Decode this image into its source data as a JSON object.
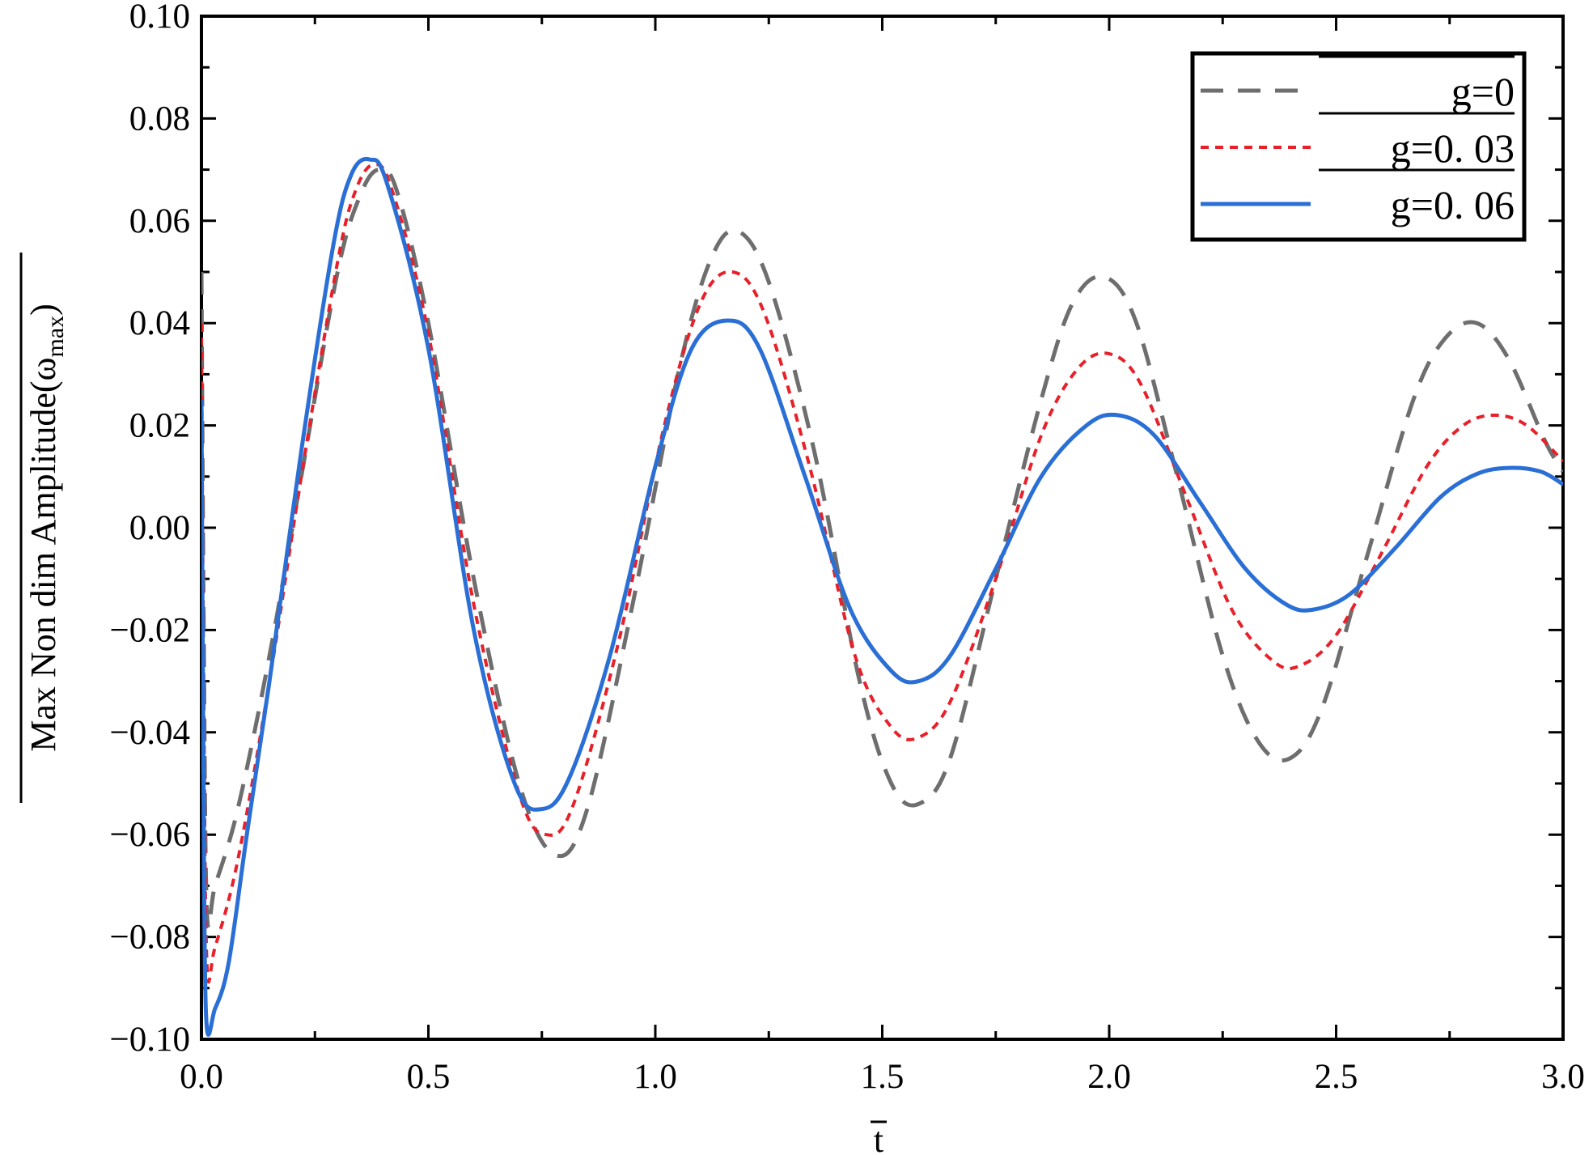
{
  "chart_data": {
    "type": "line",
    "title": "",
    "xlabel": "t",
    "ylabel": "Max Non dim Amplitude(ω",
    "ylabel_sub": "max",
    "ylabel_close": ")",
    "xlim": [
      0,
      3.0
    ],
    "ylim": [
      -0.1,
      0.1
    ],
    "x_ticks": [
      0.0,
      0.5,
      1.0,
      1.5,
      2.0,
      2.5,
      3.0
    ],
    "x_tick_labels": [
      "0.0",
      "0.5",
      "1.0",
      "1.5",
      "2.0",
      "2.5",
      "3.0"
    ],
    "y_ticks": [
      -0.1,
      -0.08,
      -0.06,
      -0.04,
      -0.02,
      0.0,
      0.02,
      0.04,
      0.06,
      0.08,
      0.1
    ],
    "y_tick_labels": [
      "−0.10",
      "−0.08",
      "−0.06",
      "−0.04",
      "−0.02",
      "0.00",
      "0.02",
      "0.04",
      "0.06",
      "0.08",
      "0.10"
    ],
    "grid": false,
    "legend_position": "top-right",
    "series": [
      {
        "name": "g=0",
        "color": "#6e6e6e",
        "dash": "dashed",
        "points": [
          [
            0.0,
            0.05
          ],
          [
            0.005,
            -0.02
          ],
          [
            0.012,
            -0.075
          ],
          [
            0.03,
            -0.07
          ],
          [
            0.08,
            -0.055
          ],
          [
            0.15,
            -0.025
          ],
          [
            0.22,
            0.01
          ],
          [
            0.3,
            0.05
          ],
          [
            0.35,
            0.065
          ],
          [
            0.39,
            0.07
          ],
          [
            0.43,
            0.066
          ],
          [
            0.5,
            0.04
          ],
          [
            0.6,
            -0.01
          ],
          [
            0.7,
            -0.05
          ],
          [
            0.78,
            -0.064
          ],
          [
            0.85,
            -0.055
          ],
          [
            0.95,
            -0.015
          ],
          [
            1.05,
            0.03
          ],
          [
            1.12,
            0.052
          ],
          [
            1.18,
            0.058
          ],
          [
            1.25,
            0.048
          ],
          [
            1.35,
            0.015
          ],
          [
            1.45,
            -0.03
          ],
          [
            1.52,
            -0.05
          ],
          [
            1.58,
            -0.054
          ],
          [
            1.65,
            -0.045
          ],
          [
            1.75,
            -0.01
          ],
          [
            1.85,
            0.025
          ],
          [
            1.92,
            0.044
          ],
          [
            1.99,
            0.049
          ],
          [
            2.06,
            0.04
          ],
          [
            2.15,
            0.01
          ],
          [
            2.25,
            -0.025
          ],
          [
            2.33,
            -0.042
          ],
          [
            2.4,
            -0.045
          ],
          [
            2.47,
            -0.035
          ],
          [
            2.57,
            -0.005
          ],
          [
            2.67,
            0.025
          ],
          [
            2.74,
            0.037
          ],
          [
            2.81,
            0.04
          ],
          [
            2.88,
            0.033
          ],
          [
            2.96,
            0.017
          ],
          [
            3.0,
            0.011
          ]
        ]
      },
      {
        "name": "g=0. 03",
        "color": "#e8202a",
        "dash": "dotted",
        "points": [
          [
            0.0,
            0.04
          ],
          [
            0.005,
            -0.03
          ],
          [
            0.012,
            -0.085
          ],
          [
            0.03,
            -0.082
          ],
          [
            0.08,
            -0.065
          ],
          [
            0.15,
            -0.03
          ],
          [
            0.22,
            0.01
          ],
          [
            0.3,
            0.052
          ],
          [
            0.34,
            0.066
          ],
          [
            0.38,
            0.071
          ],
          [
            0.42,
            0.066
          ],
          [
            0.5,
            0.038
          ],
          [
            0.6,
            -0.015
          ],
          [
            0.7,
            -0.052
          ],
          [
            0.76,
            -0.06
          ],
          [
            0.82,
            -0.054
          ],
          [
            0.92,
            -0.022
          ],
          [
            1.02,
            0.02
          ],
          [
            1.1,
            0.044
          ],
          [
            1.17,
            0.05
          ],
          [
            1.24,
            0.042
          ],
          [
            1.34,
            0.012
          ],
          [
            1.44,
            -0.025
          ],
          [
            1.52,
            -0.039
          ],
          [
            1.58,
            -0.041
          ],
          [
            1.65,
            -0.034
          ],
          [
            1.75,
            -0.01
          ],
          [
            1.85,
            0.018
          ],
          [
            1.93,
            0.031
          ],
          [
            2.0,
            0.034
          ],
          [
            2.07,
            0.028
          ],
          [
            2.17,
            0.006
          ],
          [
            2.27,
            -0.016
          ],
          [
            2.36,
            -0.026
          ],
          [
            2.42,
            -0.027
          ],
          [
            2.5,
            -0.021
          ],
          [
            2.6,
            -0.005
          ],
          [
            2.7,
            0.012
          ],
          [
            2.78,
            0.02
          ],
          [
            2.85,
            0.022
          ],
          [
            2.92,
            0.02
          ],
          [
            3.0,
            0.013
          ]
        ]
      },
      {
        "name": "g=0. 06",
        "color": "#2a6fd6",
        "dash": "solid",
        "points": [
          [
            0.0,
            0.025
          ],
          [
            0.004,
            -0.04
          ],
          [
            0.01,
            -0.095
          ],
          [
            0.03,
            -0.094
          ],
          [
            0.06,
            -0.085
          ],
          [
            0.1,
            -0.06
          ],
          [
            0.15,
            -0.03
          ],
          [
            0.22,
            0.015
          ],
          [
            0.29,
            0.055
          ],
          [
            0.33,
            0.069
          ],
          [
            0.37,
            0.072
          ],
          [
            0.41,
            0.067
          ],
          [
            0.5,
            0.035
          ],
          [
            0.6,
            -0.02
          ],
          [
            0.69,
            -0.05
          ],
          [
            0.75,
            -0.055
          ],
          [
            0.81,
            -0.049
          ],
          [
            0.9,
            -0.025
          ],
          [
            1.0,
            0.012
          ],
          [
            1.08,
            0.035
          ],
          [
            1.16,
            0.0405
          ],
          [
            1.23,
            0.035
          ],
          [
            1.33,
            0.01
          ],
          [
            1.43,
            -0.016
          ],
          [
            1.52,
            -0.028
          ],
          [
            1.58,
            -0.03
          ],
          [
            1.65,
            -0.025
          ],
          [
            1.75,
            -0.008
          ],
          [
            1.85,
            0.01
          ],
          [
            1.95,
            0.02
          ],
          [
            2.02,
            0.022
          ],
          [
            2.1,
            0.018
          ],
          [
            2.2,
            0.005
          ],
          [
            2.3,
            -0.008
          ],
          [
            2.39,
            -0.015
          ],
          [
            2.45,
            -0.016
          ],
          [
            2.53,
            -0.013
          ],
          [
            2.63,
            -0.004
          ],
          [
            2.73,
            0.006
          ],
          [
            2.81,
            0.0105
          ],
          [
            2.88,
            0.0117
          ],
          [
            2.95,
            0.011
          ],
          [
            3.0,
            0.0085
          ]
        ]
      }
    ]
  }
}
